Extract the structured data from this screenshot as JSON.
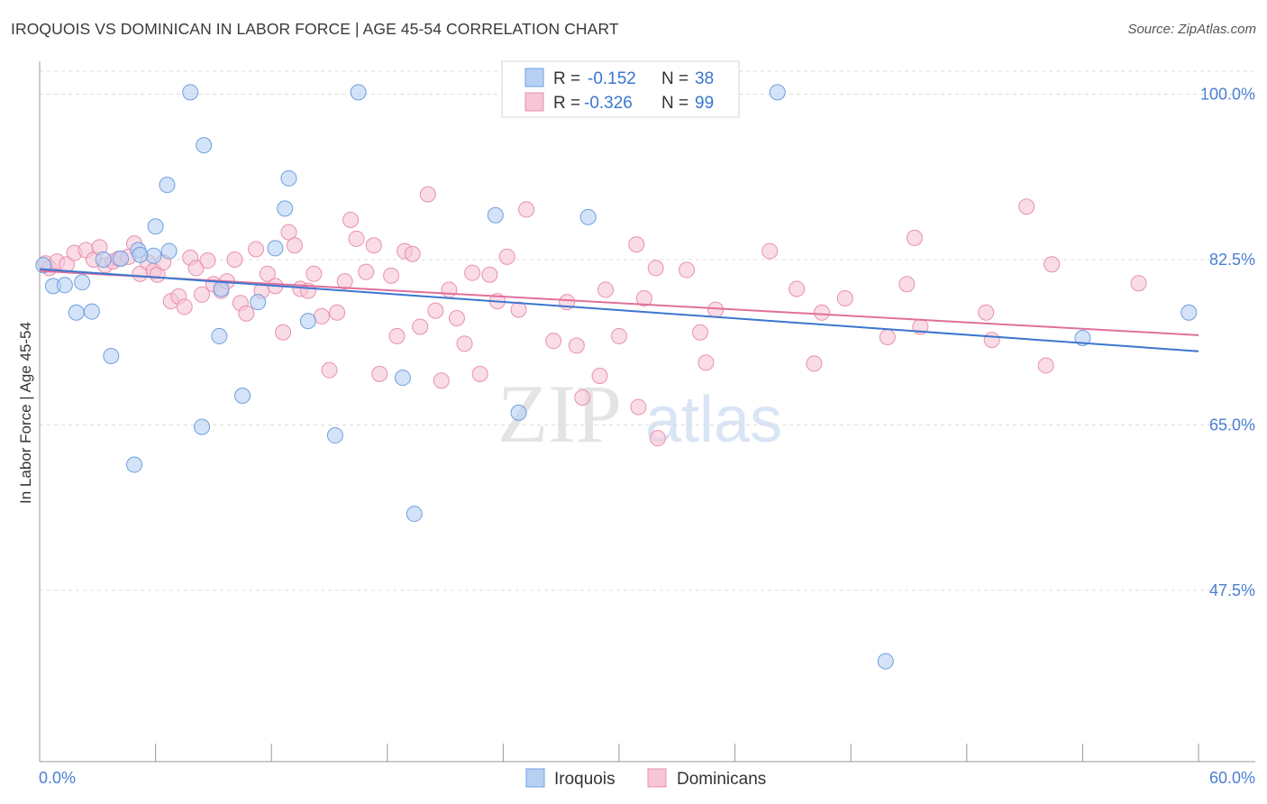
{
  "title": "IROQUOIS VS DOMINICAN IN LABOR FORCE | AGE 45-54 CORRELATION CHART",
  "source": "Source: ZipAtlas.com",
  "watermark": {
    "zip": "ZIP",
    "atlas": "atlas"
  },
  "colors": {
    "iroquois_fill": "#b7d0f2",
    "iroquois_stroke": "#6f9fe0",
    "iroquois_line": "#3a76d0",
    "dominican_fill": "#f7c5d5",
    "dominican_stroke": "#e891ad",
    "dominican_line": "#e0709a",
    "tick": "#4a7fd4",
    "grid": "#dddddd"
  },
  "legend": {
    "rows": [
      {
        "r_label": "R = ",
        "r_value": "-0.152",
        "n_label": "N = ",
        "n_value": "38"
      },
      {
        "r_label": "R = ",
        "r_value": "-0.326",
        "n_label": "N = ",
        "n_value": "99"
      }
    ]
  },
  "chart_data": {
    "type": "scatter",
    "xlabel": "",
    "ylabel": "In Labor Force | Age 45-54",
    "xlim": [
      0,
      60
    ],
    "ylim": [
      30,
      102
    ],
    "x_tick_labels": [
      "0.0%",
      "60.0%"
    ],
    "y_ticks": [
      47.5,
      65.0,
      82.5,
      100.0
    ],
    "y_tick_labels": [
      "47.5%",
      "65.0%",
      "82.5%",
      "100.0%"
    ],
    "grid": true,
    "legend_position": "top-center",
    "series": [
      {
        "name": "Iroquois",
        "trend": {
          "x0": 0,
          "y0": 81.5,
          "x1": 60,
          "y1": 72.8
        },
        "points": [
          [
            0.2,
            81.9
          ],
          [
            0.7,
            79.7
          ],
          [
            1.3,
            79.8
          ],
          [
            2.2,
            80.1
          ],
          [
            1.9,
            76.9
          ],
          [
            2.7,
            77.0
          ],
          [
            3.7,
            72.3
          ],
          [
            3.3,
            82.5
          ],
          [
            4.2,
            82.6
          ],
          [
            5.1,
            83.5
          ],
          [
            5.9,
            82.9
          ],
          [
            6.7,
            83.4
          ],
          [
            6.0,
            86.0
          ],
          [
            6.6,
            90.4
          ],
          [
            7.8,
            100.2
          ],
          [
            8.5,
            94.6
          ],
          [
            9.4,
            79.4
          ],
          [
            9.3,
            74.4
          ],
          [
            10.5,
            68.1
          ],
          [
            8.4,
            64.8
          ],
          [
            4.9,
            60.8
          ],
          [
            11.3,
            78.0
          ],
          [
            12.2,
            83.7
          ],
          [
            12.7,
            87.9
          ],
          [
            12.9,
            91.1
          ],
          [
            13.9,
            76.0
          ],
          [
            15.3,
            63.9
          ],
          [
            16.5,
            100.2
          ],
          [
            18.8,
            70.0
          ],
          [
            19.4,
            55.6
          ],
          [
            23.6,
            87.2
          ],
          [
            24.8,
            66.3
          ],
          [
            28.4,
            87.0
          ],
          [
            38.2,
            100.2
          ],
          [
            43.8,
            40.0
          ],
          [
            54.0,
            74.2
          ],
          [
            59.5,
            76.9
          ],
          [
            5.2,
            83.0
          ]
        ]
      },
      {
        "name": "Dominicans",
        "trend": {
          "x0": 0,
          "y0": 81.3,
          "x1": 60,
          "y1": 74.5
        },
        "points": [
          [
            0.3,
            82.1
          ],
          [
            0.5,
            81.6
          ],
          [
            0.9,
            82.3
          ],
          [
            1.4,
            82.0
          ],
          [
            1.8,
            83.2
          ],
          [
            2.4,
            83.5
          ],
          [
            2.8,
            82.5
          ],
          [
            3.1,
            83.8
          ],
          [
            3.4,
            81.9
          ],
          [
            3.8,
            82.3
          ],
          [
            4.1,
            82.6
          ],
          [
            4.6,
            82.8
          ],
          [
            4.9,
            84.2
          ],
          [
            5.2,
            81.0
          ],
          [
            5.6,
            82.2
          ],
          [
            5.9,
            81.3
          ],
          [
            6.1,
            80.9
          ],
          [
            6.4,
            82.2
          ],
          [
            6.8,
            78.1
          ],
          [
            7.2,
            78.6
          ],
          [
            7.5,
            77.5
          ],
          [
            7.8,
            82.7
          ],
          [
            8.1,
            81.6
          ],
          [
            8.4,
            78.8
          ],
          [
            8.7,
            82.4
          ],
          [
            9.0,
            79.9
          ],
          [
            9.4,
            79.2
          ],
          [
            9.7,
            80.2
          ],
          [
            10.1,
            82.5
          ],
          [
            10.4,
            77.9
          ],
          [
            10.7,
            76.8
          ],
          [
            11.2,
            83.6
          ],
          [
            11.5,
            79.2
          ],
          [
            11.8,
            81.0
          ],
          [
            12.2,
            79.7
          ],
          [
            12.6,
            74.8
          ],
          [
            12.9,
            85.4
          ],
          [
            13.2,
            84.0
          ],
          [
            13.5,
            79.4
          ],
          [
            13.9,
            79.2
          ],
          [
            14.2,
            81.0
          ],
          [
            14.6,
            76.5
          ],
          [
            15.0,
            70.8
          ],
          [
            15.4,
            76.9
          ],
          [
            15.8,
            80.2
          ],
          [
            16.1,
            86.7
          ],
          [
            16.4,
            84.7
          ],
          [
            16.9,
            81.2
          ],
          [
            17.3,
            84.0
          ],
          [
            17.6,
            70.4
          ],
          [
            18.2,
            80.8
          ],
          [
            18.5,
            74.4
          ],
          [
            18.9,
            83.4
          ],
          [
            19.3,
            83.1
          ],
          [
            19.7,
            75.4
          ],
          [
            20.1,
            89.4
          ],
          [
            20.5,
            77.1
          ],
          [
            20.8,
            69.7
          ],
          [
            21.2,
            79.3
          ],
          [
            21.6,
            76.3
          ],
          [
            22.0,
            73.6
          ],
          [
            22.4,
            81.1
          ],
          [
            22.8,
            70.4
          ],
          [
            23.3,
            80.9
          ],
          [
            23.7,
            78.1
          ],
          [
            24.2,
            82.8
          ],
          [
            24.8,
            77.2
          ],
          [
            25.2,
            87.8
          ],
          [
            26.6,
            73.9
          ],
          [
            27.3,
            78.0
          ],
          [
            27.8,
            73.4
          ],
          [
            28.1,
            67.9
          ],
          [
            29.0,
            70.2
          ],
          [
            29.3,
            79.3
          ],
          [
            30.0,
            74.4
          ],
          [
            30.9,
            84.1
          ],
          [
            31.0,
            66.9
          ],
          [
            31.3,
            78.4
          ],
          [
            31.9,
            81.6
          ],
          [
            32.0,
            63.6
          ],
          [
            33.5,
            81.4
          ],
          [
            34.2,
            74.8
          ],
          [
            34.5,
            71.6
          ],
          [
            35.0,
            77.2
          ],
          [
            37.8,
            83.4
          ],
          [
            39.2,
            79.4
          ],
          [
            40.1,
            71.5
          ],
          [
            40.5,
            76.9
          ],
          [
            41.7,
            78.4
          ],
          [
            43.9,
            74.3
          ],
          [
            44.9,
            79.9
          ],
          [
            45.3,
            84.8
          ],
          [
            45.6,
            75.4
          ],
          [
            49.0,
            76.9
          ],
          [
            49.3,
            74.0
          ],
          [
            51.1,
            88.1
          ],
          [
            52.1,
            71.3
          ],
          [
            52.4,
            82.0
          ],
          [
            56.9,
            80.0
          ]
        ]
      }
    ]
  },
  "bottom_legend": [
    "Iroquois",
    "Dominicans"
  ]
}
